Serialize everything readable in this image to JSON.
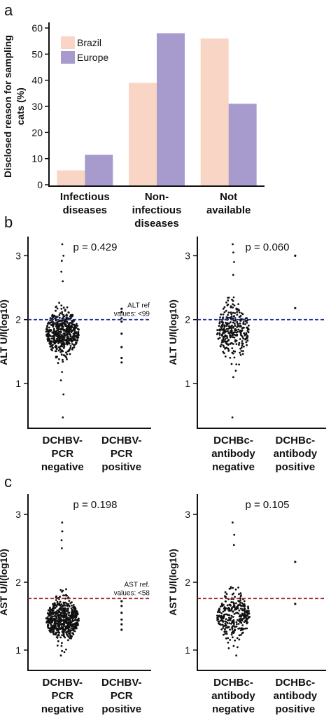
{
  "panels": {
    "a": "a",
    "b": "b",
    "c": "c"
  },
  "colors": {
    "brazil": "#f9d5c6",
    "europe": "#a79bcd",
    "alt_ref": "#1f2d9e",
    "ast_ref": "#9e1f1f",
    "dot": "#111111"
  },
  "chart_data": [
    {
      "id": "bar-a",
      "type": "bar",
      "ylabel_lines": [
        "Disclosed reason for sampling",
        "cats (%)"
      ],
      "ylim": [
        0,
        60
      ],
      "yticks": [
        0,
        10,
        20,
        30,
        40,
        50,
        60
      ],
      "categories": [
        [
          "Infectious",
          "diseases"
        ],
        [
          "Non-",
          "infectious",
          "diseases"
        ],
        [
          "Not",
          "available"
        ]
      ],
      "series": [
        {
          "name": "Brazil",
          "color": "#f9d5c6",
          "values": [
            5.5,
            39,
            56
          ]
        },
        {
          "name": "Europe",
          "color": "#a79bcd",
          "values": [
            11.5,
            58,
            31
          ]
        }
      ],
      "legend_position": "top-left"
    },
    {
      "id": "alt-pcr",
      "type": "scatter",
      "ylabel": "ALT U/l(log10)",
      "ylim": [
        0.3,
        3.3
      ],
      "yticks": [
        "1",
        "2",
        "3"
      ],
      "p_value": "p = 0.429",
      "ref_line": 2.0,
      "ref_color": "#1f2d9e",
      "ref_text": [
        "ALT ref",
        "values: <99"
      ],
      "groups": [
        {
          "label": [
            "DCHBV-",
            "PCR",
            "negative"
          ],
          "n": 520,
          "center": 1.8,
          "spread": 0.17,
          "min": 0.47,
          "max": 3.18,
          "tail": [
            0.47,
            0.83,
            1.05,
            1.18,
            2.6,
            2.75,
            2.92,
            3.0,
            3.18
          ]
        },
        {
          "label": [
            "DCHBV-",
            "PCR",
            "positive"
          ],
          "points": [
            2.17,
            2.12,
            2.02,
            1.97,
            1.78,
            1.57,
            1.4,
            1.33
          ]
        }
      ]
    },
    {
      "id": "alt-ab",
      "type": "scatter",
      "ylabel": "ALT U/l(log10)",
      "ylim": [
        0.3,
        3.3
      ],
      "yticks": [
        "1",
        "2",
        "3"
      ],
      "p_value": "p = 0.060",
      "ref_line": 2.0,
      "ref_color": "#1f2d9e",
      "groups": [
        {
          "label": [
            "DCHBc-",
            "antibody",
            "negative"
          ],
          "n": 300,
          "center": 1.82,
          "spread": 0.2,
          "min": 0.47,
          "max": 3.18,
          "tail": [
            0.47,
            1.1,
            1.2,
            2.7,
            2.9,
            3.05,
            3.18
          ]
        },
        {
          "label": [
            "DCHBc-",
            "antibody",
            "positive"
          ],
          "points": [
            3.0,
            2.18
          ]
        }
      ]
    },
    {
      "id": "ast-pcr",
      "type": "scatter",
      "ylabel": "AST U/l(log10)",
      "ylim": [
        0.7,
        3.3
      ],
      "yticks": [
        "1",
        "2",
        "3"
      ],
      "p_value": "p = 0.198",
      "ref_line": 1.76,
      "ref_color": "#9e1f1f",
      "ref_text": [
        "AST ref.",
        "values: <58"
      ],
      "groups": [
        {
          "label": [
            "DCHBV-",
            "PCR",
            "negative"
          ],
          "n": 540,
          "center": 1.45,
          "spread": 0.14,
          "min": 0.92,
          "max": 2.88,
          "tail": [
            0.92,
            0.97,
            2.5,
            2.62,
            2.75,
            2.88
          ]
        },
        {
          "label": [
            "DCHBV-",
            "PCR",
            "positive"
          ],
          "points": [
            1.72,
            1.65,
            1.55,
            1.45,
            1.38,
            1.3
          ]
        }
      ]
    },
    {
      "id": "ast-ab",
      "type": "scatter",
      "ylabel": "AST U/l(log10)",
      "ylim": [
        0.7,
        3.3
      ],
      "yticks": [
        "1",
        "2",
        "3"
      ],
      "p_value": "p = 0.105",
      "ref_line": 1.76,
      "ref_color": "#9e1f1f",
      "groups": [
        {
          "label": [
            "DCHBc-",
            "antibody",
            "negative"
          ],
          "n": 300,
          "center": 1.5,
          "spread": 0.17,
          "min": 0.92,
          "max": 2.88,
          "tail": [
            0.92,
            2.55,
            2.7,
            2.88
          ]
        },
        {
          "label": [
            "DCHBc-",
            "antibody",
            "positive"
          ],
          "points": [
            2.3,
            1.68
          ]
        }
      ]
    }
  ]
}
